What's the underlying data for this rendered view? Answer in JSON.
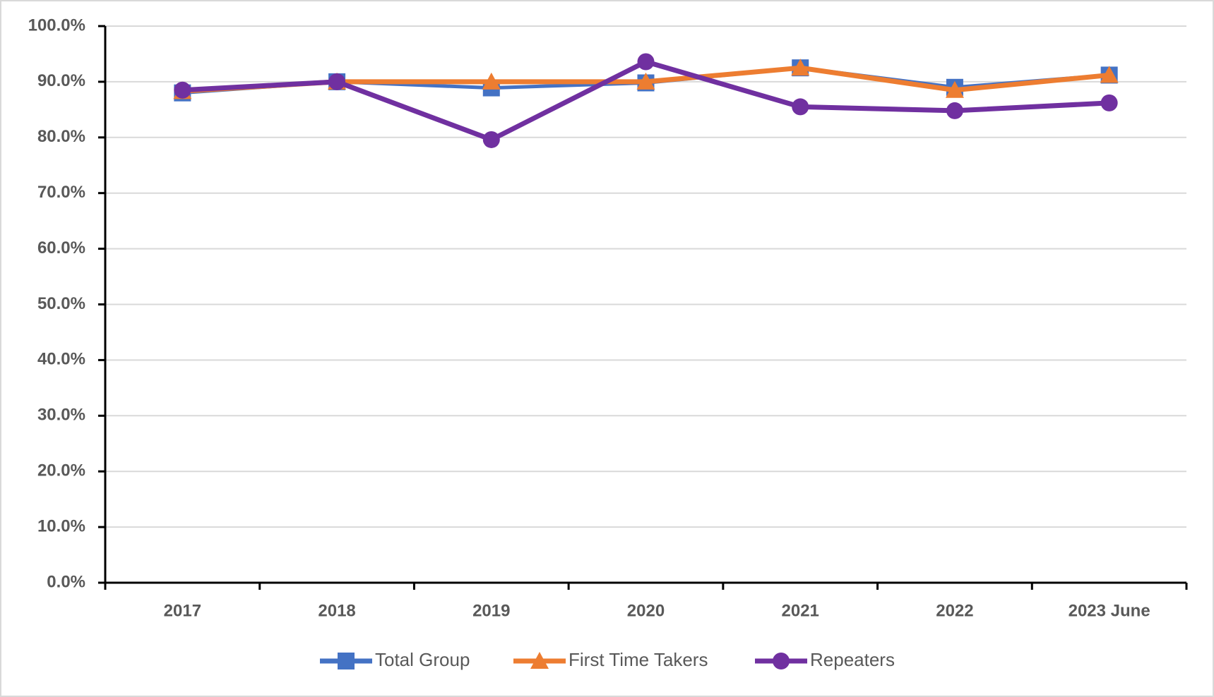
{
  "chart_data": {
    "type": "line",
    "categories": [
      "2017",
      "2018",
      "2019",
      "2020",
      "2021",
      "2022",
      "2023 June"
    ],
    "series": [
      {
        "name": "Total Group",
        "color": "#4472c4",
        "marker": "square",
        "values": [
          88.0,
          90.0,
          88.9,
          89.8,
          92.5,
          89.0,
          91.2
        ]
      },
      {
        "name": "First Time Takers",
        "color": "#ed7d31",
        "marker": "triangle",
        "values": [
          88.3,
          90.0,
          90.0,
          90.0,
          92.5,
          88.5,
          91.2
        ]
      },
      {
        "name": "Repeaters",
        "color": "#7030a0",
        "marker": "circle",
        "values": [
          88.5,
          90.0,
          79.6,
          93.6,
          85.5,
          84.8,
          86.2
        ]
      }
    ],
    "ylim": [
      0,
      100
    ],
    "yticks": [
      {
        "value": 0,
        "label": "0.0%"
      },
      {
        "value": 10,
        "label": "10.0%"
      },
      {
        "value": 20,
        "label": "20.0%"
      },
      {
        "value": 30,
        "label": "30.0%"
      },
      {
        "value": 40,
        "label": "40.0%"
      },
      {
        "value": 50,
        "label": "50.0%"
      },
      {
        "value": 60,
        "label": "60.0%"
      },
      {
        "value": 70,
        "label": "70.0%"
      },
      {
        "value": 80,
        "label": "80.0%"
      },
      {
        "value": 90,
        "label": "90.0%"
      },
      {
        "value": 100,
        "label": "100.0%"
      }
    ],
    "grid": true,
    "legend": "bottom"
  }
}
